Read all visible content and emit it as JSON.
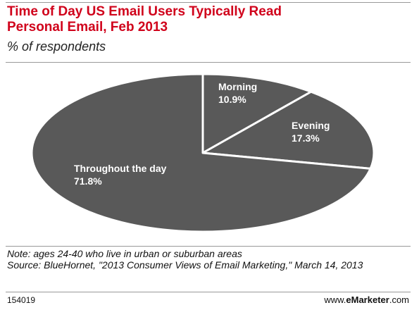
{
  "chart_data": {
    "type": "pie",
    "title": "Time of Day US Email Users Typically Read Personal Email, Feb 2013",
    "subtitle": "% of respondents",
    "categories": [
      "Morning",
      "Evening",
      "Throughout the day"
    ],
    "values": [
      10.9,
      17.3,
      71.8
    ],
    "value_labels": [
      "10.9%",
      "17.3%",
      "71.8%"
    ],
    "color": "#595959",
    "note": "Note: ages 24-40 who live in urban or suburban areas",
    "source": "Source: BlueHornet, \"2013 Consumer Views of Email Marketing,\" March 14, 2013",
    "chart_id": "154019",
    "brand": [
      "www.",
      "eMarketer",
      ".com"
    ]
  }
}
